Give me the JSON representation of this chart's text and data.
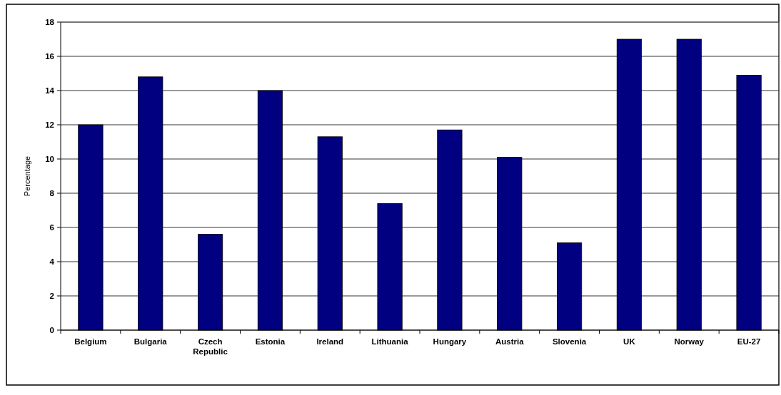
{
  "chart_data": {
    "type": "bar",
    "ylabel": "Percentage",
    "categories": [
      "Belgium",
      "Bulgaria",
      "Czech Republic",
      "Estonia",
      "Ireland",
      "Lithuania",
      "Hungary",
      "Austria",
      "Slovenia",
      "UK",
      "Norway",
      "EU-27"
    ],
    "values": [
      12.0,
      14.8,
      5.6,
      14.0,
      11.3,
      7.4,
      11.7,
      10.1,
      5.1,
      17.0,
      17.0,
      14.9
    ],
    "color": "#000080",
    "ylim": [
      0,
      18
    ],
    "yticks": [
      0,
      2,
      4,
      6,
      8,
      10,
      12,
      14,
      16,
      18
    ],
    "grid": "y"
  }
}
